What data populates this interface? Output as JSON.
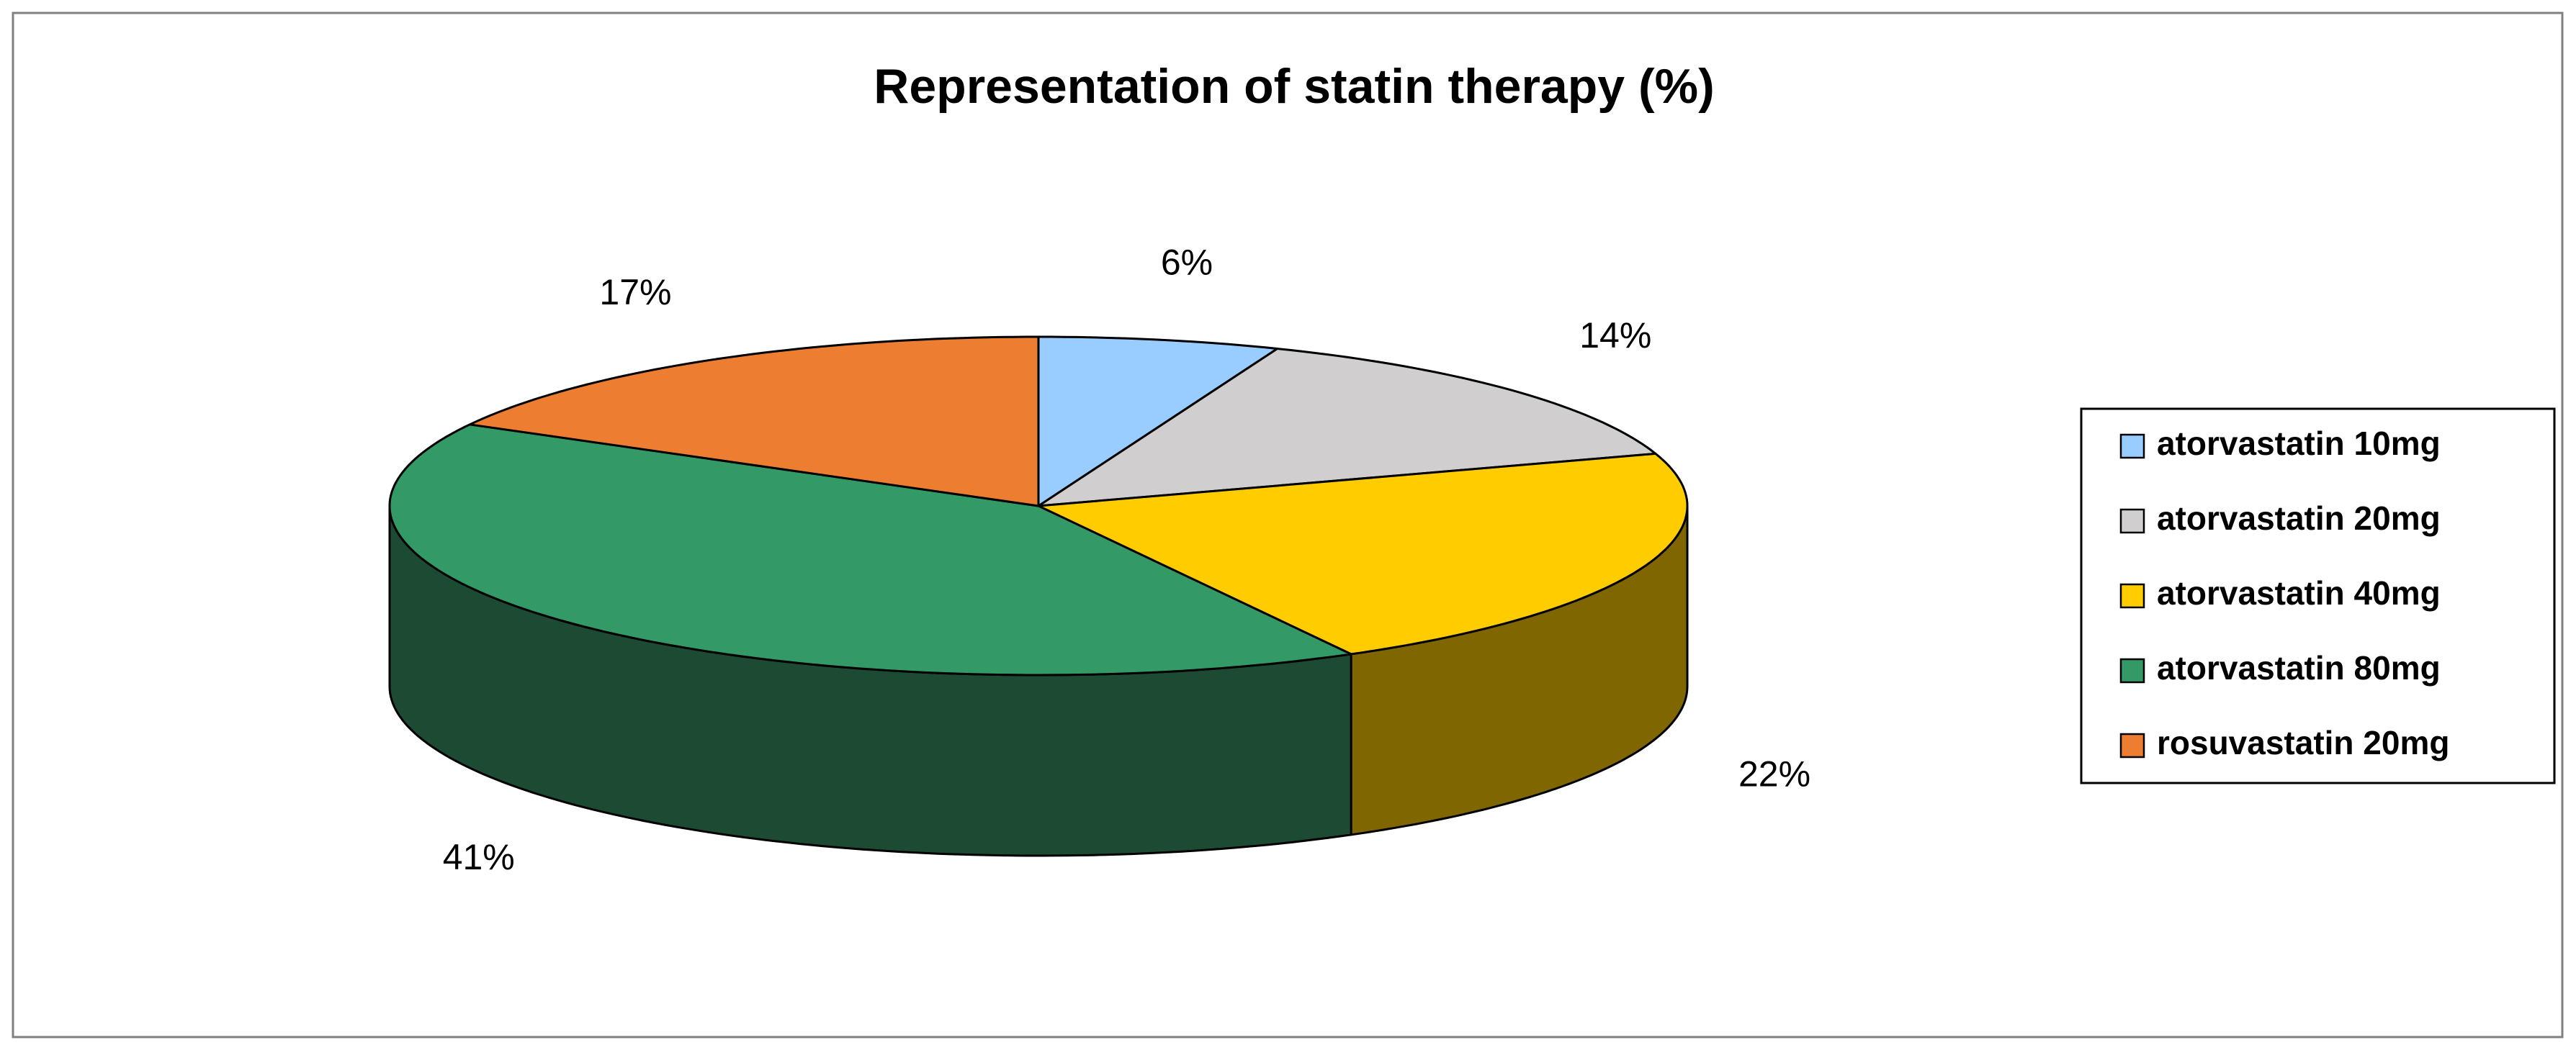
{
  "chart_data": {
    "type": "pie",
    "title": "Representation of statin therapy (%)",
    "categories": [
      "atorvastatin 10mg",
      "atorvastatin 20mg",
      "atorvastatin 40mg",
      "atorvastatin 80mg",
      "rosuvastatin 20mg"
    ],
    "values": [
      6,
      14,
      22,
      41,
      17
    ],
    "value_labels": [
      "6%",
      "14%",
      "22%",
      "41%",
      "17%"
    ],
    "colors": [
      "#99ccff",
      "#d0cece",
      "#ffcc00",
      "#339966",
      "#ed7d31"
    ],
    "side_colors": [
      "#4d6680",
      "#686767",
      "#806600",
      "#1c4a33",
      "#773f18"
    ],
    "legend": "right"
  }
}
